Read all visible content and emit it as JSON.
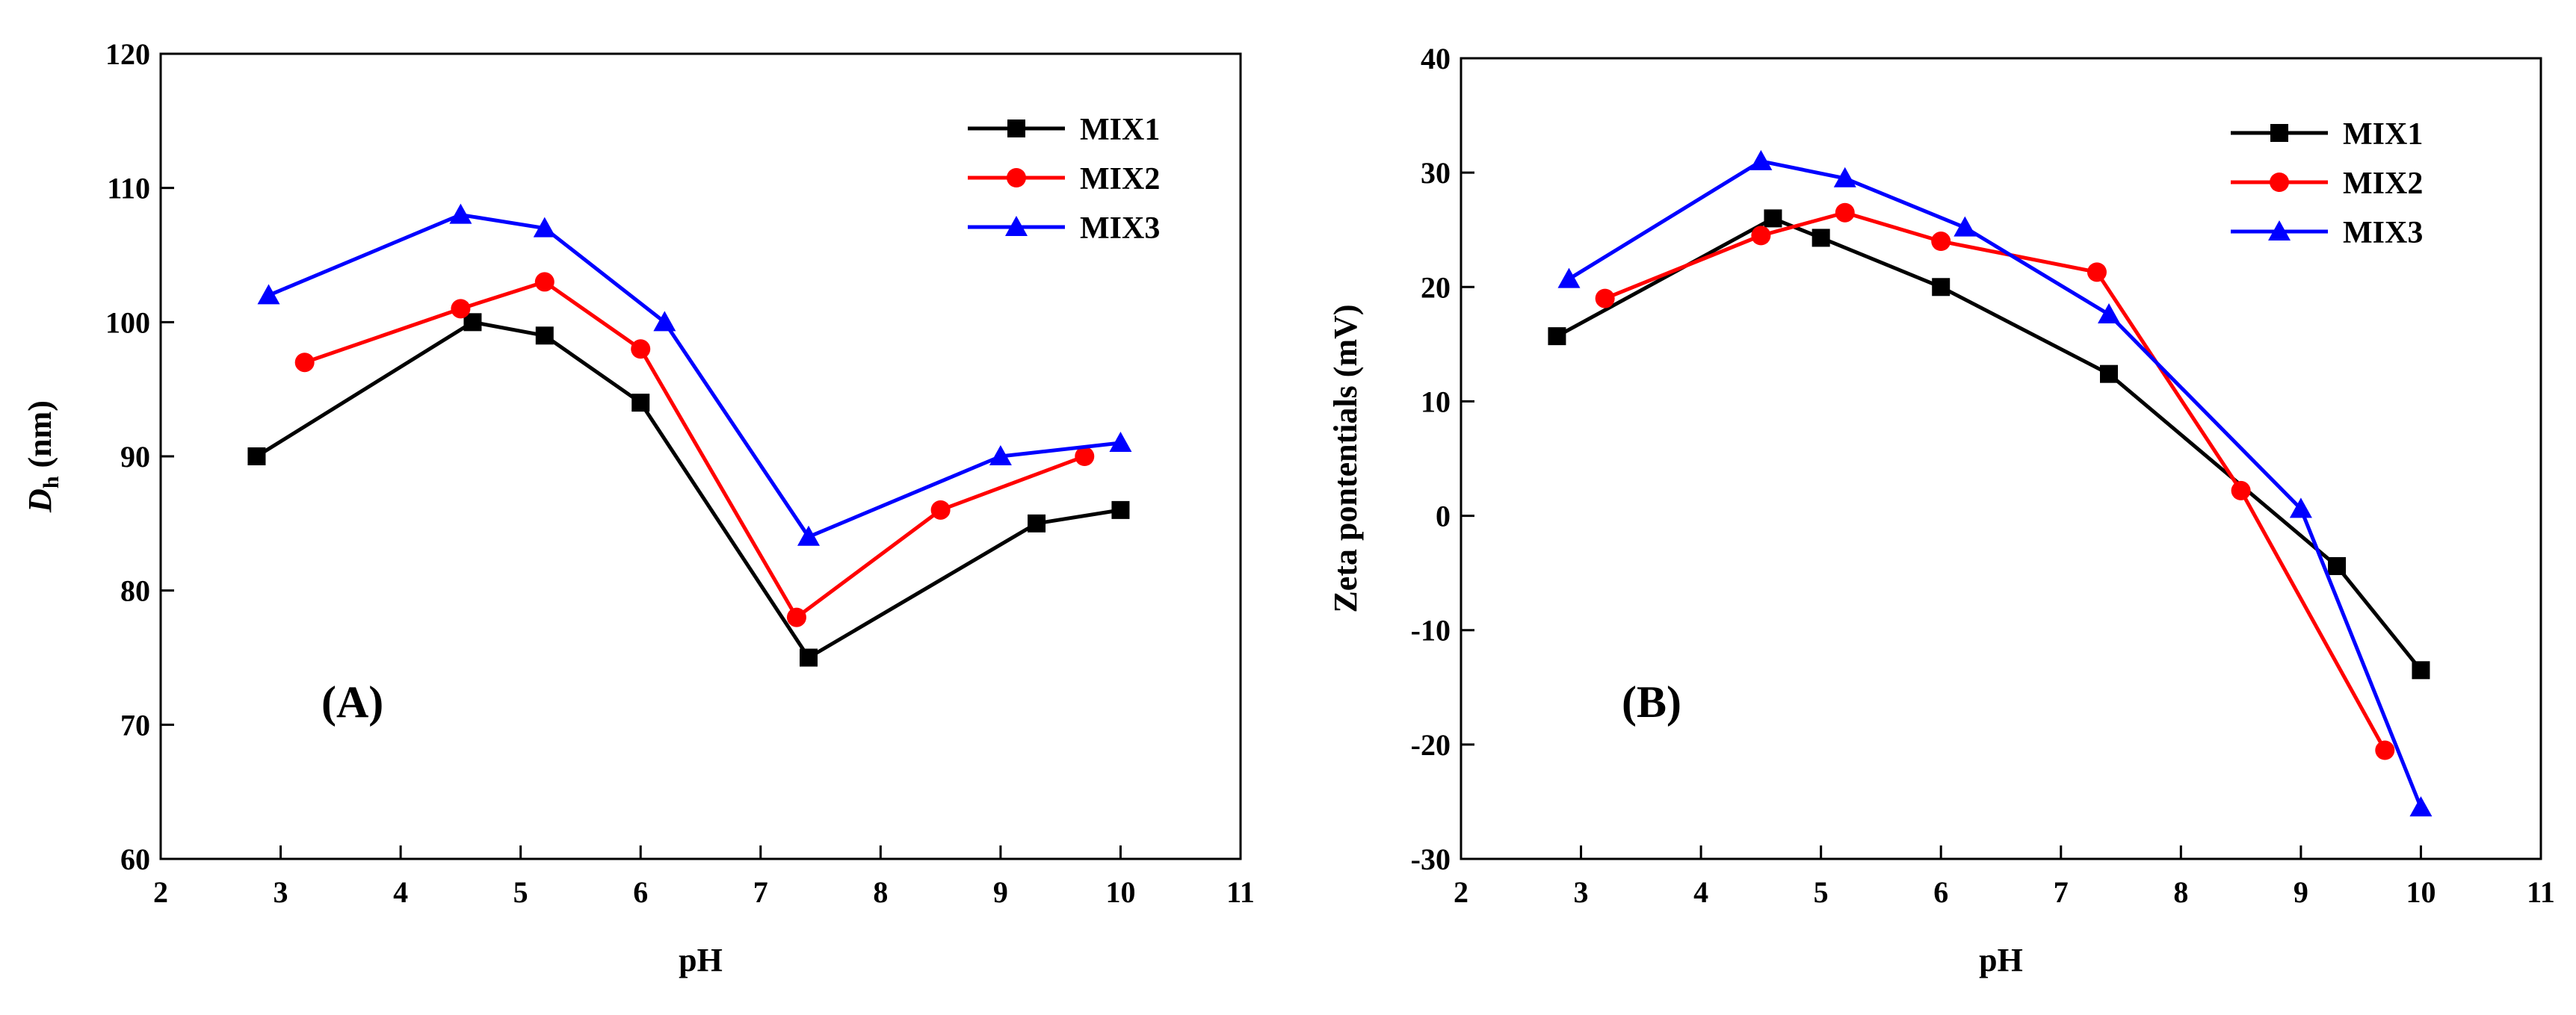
{
  "colors": {
    "MIX1": "#000000",
    "MIX2": "#ff0000",
    "MIX3": "#0000ff"
  },
  "chart_data": [
    {
      "type": "line",
      "panel_label": "(A)",
      "xlabel": "pH",
      "ylabel_main": "D",
      "ylabel_sub": "h",
      "ylabel_rest": " (nm)",
      "xlim": [
        2,
        11
      ],
      "ylim": [
        60,
        120
      ],
      "xticks": [
        2,
        3,
        4,
        5,
        6,
        7,
        8,
        9,
        10,
        11
      ],
      "yticks": [
        60,
        70,
        80,
        90,
        100,
        110,
        120
      ],
      "legend_position": "top-right",
      "series": [
        {
          "name": "MIX1",
          "marker": "square",
          "x": [
            2.8,
            4.6,
            5.2,
            6.0,
            7.4,
            9.3,
            10.0
          ],
          "y": [
            90,
            100,
            99,
            94,
            75,
            85,
            86
          ]
        },
        {
          "name": "MIX2",
          "marker": "circle",
          "x": [
            3.2,
            4.5,
            5.2,
            6.0,
            7.3,
            8.5,
            9.7
          ],
          "y": [
            97,
            101,
            103,
            98,
            78,
            86,
            90
          ]
        },
        {
          "name": "MIX3",
          "marker": "triangle",
          "x": [
            2.9,
            4.5,
            5.2,
            6.2,
            7.4,
            9.0,
            10.0
          ],
          "y": [
            102,
            108,
            107,
            100,
            84,
            90,
            91
          ]
        }
      ]
    },
    {
      "type": "line",
      "panel_label": "(B)",
      "xlabel": "pH",
      "ylabel": "Zeta pontentials (mV)",
      "xlim": [
        2,
        11
      ],
      "ylim": [
        -30,
        40
      ],
      "xticks": [
        2,
        3,
        4,
        5,
        6,
        7,
        8,
        9,
        10,
        11
      ],
      "yticks": [
        -30,
        -20,
        -10,
        0,
        10,
        20,
        30,
        40
      ],
      "legend_position": "top-right",
      "series": [
        {
          "name": "MIX1",
          "marker": "square",
          "x": [
            2.8,
            4.6,
            5.0,
            6.0,
            7.4,
            9.3,
            10.0
          ],
          "y": [
            15.7,
            26,
            24.3,
            20,
            12.4,
            -4.4,
            -13.5
          ]
        },
        {
          "name": "MIX2",
          "marker": "circle",
          "x": [
            3.2,
            4.5,
            5.2,
            6.0,
            7.3,
            8.5,
            9.7
          ],
          "y": [
            19,
            24.5,
            26.5,
            24,
            21.3,
            2.2,
            -20.5
          ]
        },
        {
          "name": "MIX3",
          "marker": "triangle",
          "x": [
            2.9,
            4.5,
            5.2,
            6.2,
            7.4,
            9.0,
            10.0
          ],
          "y": [
            20.7,
            31,
            29.5,
            25.2,
            17.6,
            0.6,
            -25.5
          ]
        }
      ]
    }
  ]
}
